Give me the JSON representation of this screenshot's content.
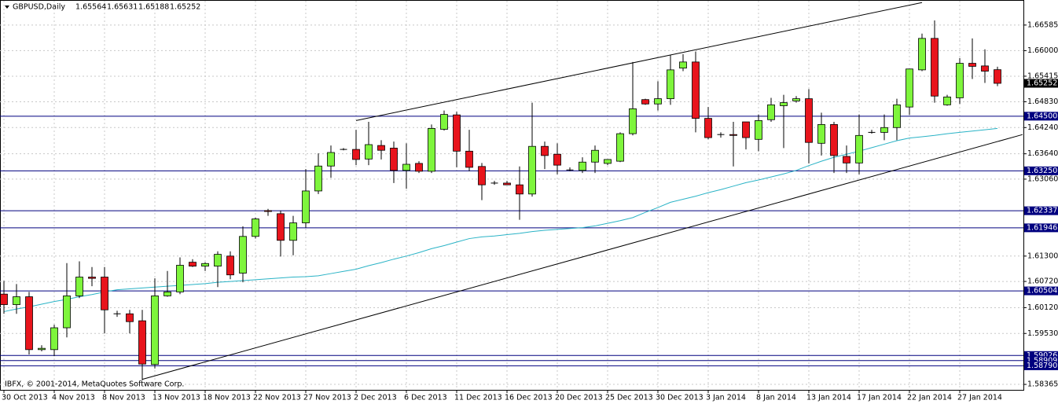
{
  "chart_data": {
    "type": "candlestick",
    "symbol": "GBPUSD,Daily",
    "footer": "IBFX, © 2001-2014, MetaQuotes Software Corp.",
    "categories": [
      "30 Oct 2013",
      null,
      null,
      null,
      "4 Nov 2013",
      null,
      null,
      null,
      "8 Nov 2013",
      null,
      null,
      null,
      "13 Nov 2013",
      null,
      null,
      null,
      "18 Nov 2013",
      null,
      null,
      null,
      "22 Nov 2013",
      null,
      null,
      null,
      "27 Nov 2013",
      null,
      null,
      null,
      "2 Dec 2013",
      null,
      null,
      null,
      "6 Dec 2013",
      null,
      null,
      null,
      "11 Dec 2013",
      null,
      null,
      null,
      "16 Dec 2013",
      null,
      null,
      null,
      "20 Dec 2013",
      null,
      null,
      null,
      "25 Dec 2013",
      null,
      null,
      null,
      "30 Dec 2013",
      null,
      null,
      null,
      "3 Jan 2014",
      null,
      null,
      null,
      "8 Jan 2014",
      null,
      null,
      null,
      "13 Jan 2014",
      null,
      null,
      null,
      "17 Jan 2014",
      null,
      null,
      null,
      "22 Jan 2014",
      null,
      null,
      null,
      "27 Jan 2014",
      null,
      null,
      null
    ],
    "candles": [
      [
        1.6043,
        1.6073,
        1.5998,
        1.6019
      ],
      [
        1.6019,
        1.6066,
        1.5998,
        1.6037
      ],
      [
        1.6037,
        1.6048,
        1.5905,
        1.5916
      ],
      [
        1.5916,
        1.5926,
        1.5912,
        1.5919
      ],
      [
        1.5916,
        1.5973,
        1.5901,
        1.5966
      ],
      [
        1.5966,
        1.6114,
        1.5944,
        1.6039
      ],
      [
        1.6039,
        1.6118,
        1.6034,
        1.6082
      ],
      [
        1.6082,
        1.6105,
        1.6061,
        1.6079
      ],
      [
        1.6082,
        1.6105,
        1.5953,
        1.6007
      ],
      [
        1.5998,
        1.6005,
        1.5991,
        1.5998
      ],
      [
        1.5998,
        1.6007,
        1.5953,
        1.598
      ],
      [
        1.5982,
        1.6007,
        1.5846,
        1.5883
      ],
      [
        1.5882,
        1.6079,
        1.5873,
        1.6039
      ],
      [
        1.6039,
        1.6096,
        1.6037,
        1.6048
      ],
      [
        1.6048,
        1.6127,
        1.6043,
        1.6109
      ],
      [
        1.6116,
        1.6123,
        1.6105,
        1.6107
      ],
      [
        1.6107,
        1.6116,
        1.6096,
        1.6113
      ],
      [
        1.6107,
        1.6141,
        1.6059,
        1.6134
      ],
      [
        1.613,
        1.6141,
        1.6077,
        1.6087
      ],
      [
        1.6091,
        1.6198,
        1.607,
        1.6175
      ],
      [
        1.6175,
        1.6218,
        1.617,
        1.6215
      ],
      [
        1.6234,
        1.6238,
        1.6222,
        1.6232
      ],
      [
        1.6227,
        1.6234,
        1.6129,
        1.6166
      ],
      [
        1.6166,
        1.6222,
        1.6132,
        1.6206
      ],
      [
        1.6206,
        1.6329,
        1.6195,
        1.6279
      ],
      [
        1.6279,
        1.6365,
        1.6272,
        1.6336
      ],
      [
        1.6336,
        1.6383,
        1.6309,
        1.6367
      ],
      [
        1.6374,
        1.6377,
        1.6372,
        1.6374
      ],
      [
        1.6374,
        1.6419,
        1.6338,
        1.6351
      ],
      [
        1.6352,
        1.6437,
        1.6338,
        1.6385
      ],
      [
        1.6383,
        1.6395,
        1.6351,
        1.6372
      ],
      [
        1.6377,
        1.6392,
        1.6297,
        1.6326
      ],
      [
        1.6326,
        1.6388,
        1.6284,
        1.634
      ],
      [
        1.6342,
        1.6347,
        1.632,
        1.6324
      ],
      [
        1.6324,
        1.6431,
        1.632,
        1.6422
      ],
      [
        1.642,
        1.6463,
        1.6417,
        1.6454
      ],
      [
        1.6453,
        1.646,
        1.6333,
        1.637
      ],
      [
        1.637,
        1.6419,
        1.6324,
        1.6333
      ],
      [
        1.6335,
        1.6343,
        1.6258,
        1.6293
      ],
      [
        1.6297,
        1.6302,
        1.6293,
        1.6297
      ],
      [
        1.6297,
        1.6302,
        1.6293,
        1.6293
      ],
      [
        1.6293,
        1.6335,
        1.6213,
        1.6272
      ],
      [
        1.6272,
        1.6481,
        1.6266,
        1.6381
      ],
      [
        1.6381,
        1.6392,
        1.6329,
        1.636
      ],
      [
        1.6363,
        1.6388,
        1.6317,
        1.6338
      ],
      [
        1.6327,
        1.6333,
        1.6324,
        1.6327
      ],
      [
        1.6326,
        1.6356,
        1.632,
        1.6345
      ],
      [
        1.6345,
        1.6383,
        1.632,
        1.6372
      ],
      [
        1.6342,
        1.6351,
        1.6338,
        1.6351
      ],
      [
        1.6347,
        1.6413,
        1.6345,
        1.641
      ],
      [
        1.641,
        1.6574,
        1.6406,
        1.6467
      ],
      [
        1.6488,
        1.649,
        1.6476,
        1.6478
      ],
      [
        1.6478,
        1.653,
        1.6463,
        1.649
      ],
      [
        1.649,
        1.6589,
        1.6476,
        1.6556
      ],
      [
        1.656,
        1.6592,
        1.6553,
        1.6574
      ],
      [
        1.6574,
        1.6598,
        1.6413,
        1.6445
      ],
      [
        1.6445,
        1.6471,
        1.6397,
        1.6401
      ],
      [
        1.6408,
        1.6413,
        1.6401,
        1.6408
      ],
      [
        1.6408,
        1.6437,
        1.6335,
        1.6406
      ],
      [
        1.6437,
        1.6437,
        1.6374,
        1.6401
      ],
      [
        1.6397,
        1.6454,
        1.637,
        1.644
      ],
      [
        1.6442,
        1.6492,
        1.6437,
        1.6476
      ],
      [
        1.6474,
        1.6499,
        1.6377,
        1.6481
      ],
      [
        1.6485,
        1.6496,
        1.6481,
        1.649
      ],
      [
        1.649,
        1.6512,
        1.6342,
        1.639
      ],
      [
        1.6388,
        1.6458,
        1.636,
        1.6431
      ],
      [
        1.6431,
        1.6437,
        1.632,
        1.636
      ],
      [
        1.6358,
        1.6383,
        1.632,
        1.6343
      ],
      [
        1.6343,
        1.6454,
        1.6317,
        1.6406
      ],
      [
        1.6413,
        1.6419,
        1.641,
        1.6413
      ],
      [
        1.6413,
        1.6454,
        1.6395,
        1.6424
      ],
      [
        1.6424,
        1.649,
        1.6395,
        1.6476
      ],
      [
        1.6471,
        1.6558,
        1.6453,
        1.6558
      ],
      [
        1.6556,
        1.6639,
        1.6553,
        1.6628
      ],
      [
        1.6628,
        1.6669,
        1.6481,
        1.6496
      ],
      [
        1.6476,
        1.6499,
        1.6474,
        1.6494
      ],
      [
        1.6492,
        1.6583,
        1.6478,
        1.6571
      ],
      [
        1.6571,
        1.6628,
        1.6535,
        1.6564
      ],
      [
        1.6565,
        1.6603,
        1.6526,
        1.6553
      ],
      [
        1.65564,
        1.65631,
        1.65188,
        1.65252
      ]
    ],
    "up_color": "#7ef53c",
    "down_color": "#e8141c",
    "moving_average": {
      "color": "#2ab3c6",
      "values": [
        1.6003,
        1.6009,
        1.6014,
        1.602,
        1.6026,
        1.6031,
        1.6037,
        1.6042,
        1.6048,
        1.6053,
        1.6055,
        1.6057,
        1.6059,
        1.6061,
        1.6063,
        1.6065,
        1.6067,
        1.607,
        1.6072,
        1.6074,
        1.6076,
        1.6078,
        1.608,
        1.6082,
        1.6083,
        1.6085,
        1.609,
        1.6095,
        1.61,
        1.6108,
        1.6115,
        1.6123,
        1.613,
        1.6138,
        1.6147,
        1.6154,
        1.6162,
        1.617,
        1.6174,
        1.6176,
        1.6179,
        1.6182,
        1.6186,
        1.6189,
        1.6191,
        1.6193,
        1.6195,
        1.6199,
        1.6205,
        1.6211,
        1.6218,
        1.623,
        1.6241,
        1.6253,
        1.626,
        1.6267,
        1.6275,
        1.6282,
        1.629,
        1.6298,
        1.6304,
        1.6311,
        1.6318,
        1.6326,
        1.6337,
        1.6347,
        1.6356,
        1.6363,
        1.637,
        1.6378,
        1.6386,
        1.6394,
        1.64,
        1.6403,
        1.6406,
        1.641,
        1.6413,
        1.6416,
        1.6419,
        1.6422
      ]
    },
    "trendlines": [
      {
        "color": "#000000",
        "from": [
          28,
          1.644
        ],
        "to": [
          73,
          1.671
        ]
      },
      {
        "color": "#000000",
        "from": [
          11,
          1.5848
        ],
        "to": [
          81,
          1.6408
        ]
      }
    ],
    "levels": {
      "color": "#00007f",
      "values": [
        {
          "value": 1.645,
          "label": "1.64500"
        },
        {
          "value": 1.6325,
          "label": "1.63250"
        },
        1.62337,
        1.61946,
        1.60504,
        1.59026,
        1.58909,
        {
          "value": 1.5879,
          "label": "1.58790"
        }
      ]
    },
    "ylim": [
      1.5824,
      1.6714
    ],
    "yticks": [
      1.66585,
      {
        "value": 1.66,
        "label": "1.66000"
      },
      1.65415,
      {
        "value": 1.6483,
        "label": "1.64830"
      },
      {
        "value": 1.6424,
        "label": "1.64240"
      },
      {
        "value": 1.6364,
        "label": "1.63640"
      },
      {
        "value": 1.6306,
        "label": "1.63060"
      },
      {
        "value": 1.613,
        "label": "1.61300"
      },
      {
        "value": 1.6072,
        "label": "1.60720"
      },
      {
        "value": 1.6012,
        "label": "1.60120"
      },
      {
        "value": 1.5953,
        "label": "1.59530"
      },
      1.58365
    ],
    "grid": true
  }
}
